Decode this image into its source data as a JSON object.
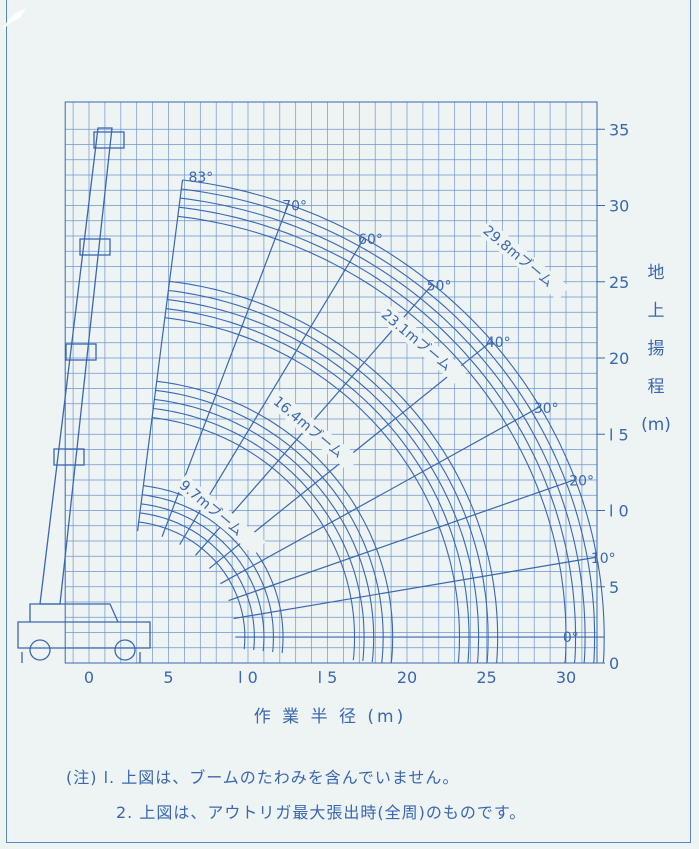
{
  "chart_data": {
    "type": "line",
    "title": "",
    "xlabel": "作 業 半 径 (m)",
    "ylabel": [
      "地",
      "上",
      "揚",
      "程",
      "(m)"
    ],
    "xlim": [
      -2,
      33
    ],
    "ylim": [
      0,
      35
    ],
    "x_ticks": [
      {
        "value": 0,
        "label": "0"
      },
      {
        "value": 5,
        "label": "5"
      },
      {
        "value": 10,
        "label": "l 0"
      },
      {
        "value": 15,
        "label": "l 5"
      },
      {
        "value": 20,
        "label": "20"
      },
      {
        "value": 25,
        "label": "25"
      },
      {
        "value": 30,
        "label": "30"
      }
    ],
    "y_ticks": [
      {
        "value": 0,
        "label": "0"
      },
      {
        "value": 5,
        "label": "5"
      },
      {
        "value": 10,
        "label": "l 0"
      },
      {
        "value": 15,
        "label": "l 5"
      },
      {
        "value": 20,
        "label": "20"
      },
      {
        "value": 25,
        "label": "25"
      },
      {
        "value": 30,
        "label": "30"
      },
      {
        "value": 35,
        "label": "35"
      }
    ],
    "grid": true,
    "boom_pivot": [
      2.2,
      1.7
    ],
    "boom_arcs": [
      {
        "label": "9.7mブーム",
        "lengths": [
          10.0,
          9.4,
          8.8,
          8.2,
          7.6
        ]
      },
      {
        "label": "16.4mブーム",
        "lengths": [
          16.9,
          16.3,
          15.7,
          15.1,
          14.5
        ]
      },
      {
        "label": "23.1mブーム",
        "lengths": [
          23.5,
          22.9,
          22.3,
          21.7,
          21.1
        ]
      },
      {
        "label": "29.8mブーム",
        "lengths": [
          30.2,
          29.6,
          29.0,
          28.4,
          27.8
        ]
      }
    ],
    "angle_lines": [
      {
        "deg": 83,
        "label": "83°"
      },
      {
        "deg": 70,
        "label": "70°"
      },
      {
        "deg": 60,
        "label": "60°"
      },
      {
        "deg": 50,
        "label": "50°"
      },
      {
        "deg": 40,
        "label": "40°"
      },
      {
        "deg": 30,
        "label": "30°"
      },
      {
        "deg": 20,
        "label": "20°"
      },
      {
        "deg": 10,
        "label": "10°"
      },
      {
        "deg": 0,
        "label": "0°"
      }
    ]
  },
  "notes": {
    "line1": "(注) l. 上図は、ブームのたわみを含んでいません。",
    "line2": "2. 上図は、アウトリガ最大張出時(全周)のものです。"
  },
  "colors": {
    "line": "#3a67b0",
    "grid": "#6e95cf",
    "text": "#3a67b0",
    "frame": "#5b87c4",
    "background": "#eef4f3"
  }
}
